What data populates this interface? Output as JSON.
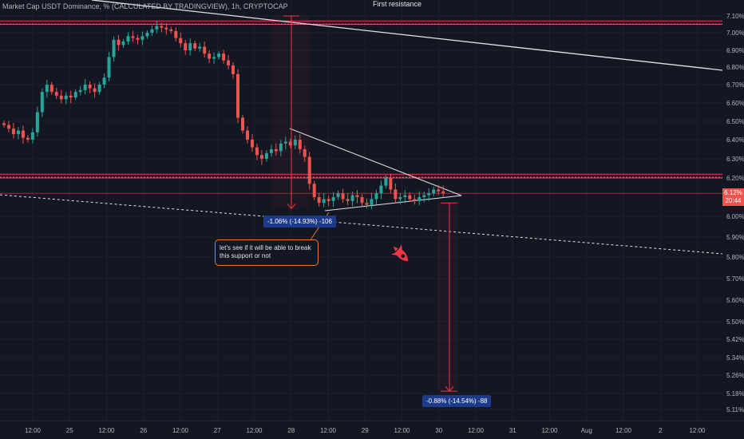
{
  "header": {
    "title": "Market Cap USDT Dominance, % (CALCULATED BY TRADINGVIEW), 1h, CRYPTOCAP",
    "annotation_top": "First resistance"
  },
  "price_tag": {
    "value": "6.12%",
    "countdown": "20:44"
  },
  "measurements": {
    "upper": "-1.06% (-14.93%) -106",
    "lower": "-0.88% (-14.54%) -88"
  },
  "note": {
    "text": "let's see if it will be able to break this support or not"
  },
  "icons": {
    "rocket": "rocket-icon"
  },
  "colors": {
    "up": "#26a69a",
    "down": "#ef5350",
    "accent": "#f23645",
    "background": "#131722"
  },
  "chart_data": {
    "type": "candlestick",
    "timeframe": "1h",
    "y_axis_ticks": [
      "7.10%",
      "7.00%",
      "6.90%",
      "6.80%",
      "6.70%",
      "6.60%",
      "6.50%",
      "6.40%",
      "6.30%",
      "6.20%",
      "6.00%",
      "5.90%",
      "5.80%",
      "5.70%",
      "5.60%",
      "5.50%",
      "5.42%",
      "5.34%",
      "5.26%",
      "5.18%",
      "5.11%"
    ],
    "x_axis_ticks": [
      "12:00",
      "25",
      "12:00",
      "26",
      "12:00",
      "27",
      "12:00",
      "28",
      "12:00",
      "29",
      "12:00",
      "30",
      "12:00",
      "31",
      "12:00",
      "Aug",
      "12:00",
      "2",
      "12:00"
    ],
    "close_series": [
      6.48,
      6.46,
      6.43,
      6.45,
      6.41,
      6.4,
      6.44,
      6.55,
      6.66,
      6.7,
      6.66,
      6.64,
      6.62,
      6.64,
      6.63,
      6.66,
      6.67,
      6.7,
      6.68,
      6.66,
      6.7,
      6.74,
      6.86,
      6.96,
      6.93,
      6.95,
      6.98,
      6.97,
      6.96,
      6.98,
      7.0,
      7.02,
      7.04,
      7.03,
      7.02,
      7.01,
      6.97,
      6.94,
      6.9,
      6.94,
      6.91,
      6.92,
      6.88,
      6.85,
      6.86,
      6.88,
      6.84,
      6.81,
      6.76,
      6.52,
      6.45,
      6.4,
      6.36,
      6.32,
      6.3,
      6.33,
      6.35,
      6.34,
      6.38,
      6.39,
      6.37,
      6.4,
      6.35,
      6.31,
      6.17,
      6.1,
      6.07,
      6.09,
      6.08,
      6.1,
      6.12,
      6.09,
      6.08,
      6.11,
      6.1,
      6.07,
      6.06,
      6.09,
      6.12,
      6.16,
      6.2,
      6.14,
      6.09,
      6.1,
      6.11,
      6.09,
      6.08,
      6.1,
      6.11,
      6.12,
      6.14,
      6.13,
      6.12
    ],
    "last_price": 6.12,
    "horizontal_levels": [
      7.07,
      7.05,
      6.22,
      6.2
    ],
    "measurements": [
      {
        "label": "-1.06% (-14.93%) -106",
        "from": 7.1,
        "to": 6.04
      },
      {
        "label": "-0.88% (-14.54%) -88",
        "from": 6.07,
        "to": 5.19
      }
    ]
  }
}
